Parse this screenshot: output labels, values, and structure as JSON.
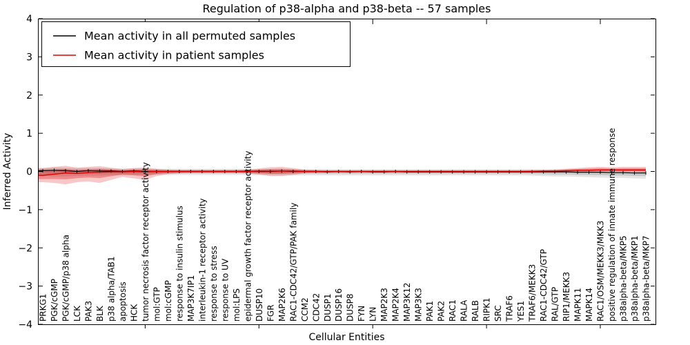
{
  "chart_data": {
    "type": "line",
    "title": "Regulation of p38-alpha and p38-beta -- 57 samples",
    "xlabel": "Cellular Entities",
    "ylabel": "Inferred Activity",
    "ylim": [
      -4,
      4
    ],
    "yticks": [
      4,
      3,
      2,
      1,
      0,
      -1,
      -2,
      -3,
      -4
    ],
    "xticks_major_positions": [
      10,
      20,
      30,
      40,
      50
    ],
    "grid": "off",
    "legend_position": "upper-left",
    "legend": {
      "entries": [
        {
          "label": "Mean activity in all permuted samples",
          "color": "#000000"
        },
        {
          "label": "Mean activity in patient samples",
          "color": "#dd0000"
        }
      ]
    },
    "colors": {
      "permuted_line": "#000000",
      "permuted_band": "rgba(0,0,0,0.10)",
      "permuted_band_inner": "rgba(0,0,0,0.13)",
      "patient_line": "#dd0000",
      "patient_band": "rgba(221,0,0,0.22)",
      "patient_band_inner": "rgba(221,0,0,0.30)"
    },
    "categories": [
      "PRKG1",
      "PGK/cGMP",
      "PGK/cGMP/p38 alpha",
      "LCK",
      "PAK3",
      "BLK",
      "p38 alpha/TAB1",
      "apoptosis",
      "HCK",
      "tumor necrosis factor receptor activity",
      "mol:GTP",
      "mol:cGMP",
      "response to insulin stimulus",
      "MAP3K7IP1",
      "interleukin-1 receptor activity",
      "response to stress",
      "response to UV",
      "mol:LPS",
      "epidermal growth factor receptor activity",
      "DUSP10",
      "FGR",
      "MAP2K6",
      "RAC1-CDC42/GTP/PAK family",
      "CCM2",
      "CDC42",
      "DUSP1",
      "DUSP16",
      "DUSP8",
      "FYN",
      "LYN",
      "MAP2K3",
      "MAP2K4",
      "MAP3K12",
      "MAP3K3",
      "PAK1",
      "PAK2",
      "RAC1",
      "RALA",
      "RALB",
      "RIPK1",
      "SRC",
      "TRAF6",
      "YES1",
      "TRAF6/MEKK3",
      "RAC1-CDC42/GTP",
      "RAL/GTP",
      "RIP1/MEKK3",
      "MAPK11",
      "MAPK14",
      "RAC1/OSM/MEKK3/MKK3",
      "positive regulation of innate immune response",
      "p38alpha-beta/MKP5",
      "p38alpha-beta/MKP1",
      "p38alpha-beta/MKP7"
    ],
    "series": [
      {
        "name": "Mean activity in all permuted samples",
        "mean": [
          0.02,
          0.03,
          0.02,
          0.0,
          0.02,
          0.01,
          0.01,
          0.0,
          0.01,
          0.0,
          0.0,
          0.0,
          0.0,
          0.0,
          0.0,
          0.0,
          0.0,
          0.0,
          0.0,
          0.0,
          0.0,
          0.01,
          0.0,
          0.0,
          0.0,
          -0.01,
          0.0,
          -0.01,
          0.0,
          -0.01,
          -0.01,
          0.0,
          -0.01,
          -0.01,
          -0.01,
          -0.01,
          -0.01,
          -0.01,
          -0.01,
          -0.01,
          -0.01,
          -0.01,
          -0.01,
          -0.01,
          -0.01,
          -0.01,
          -0.01,
          -0.02,
          -0.02,
          -0.02,
          -0.03,
          -0.03,
          -0.04,
          -0.04
        ],
        "band_hi": [
          0.1,
          0.11,
          0.1,
          0.09,
          0.09,
          0.09,
          0.08,
          0.08,
          0.08,
          0.07,
          0.07,
          0.07,
          0.07,
          0.07,
          0.07,
          0.07,
          0.07,
          0.07,
          0.07,
          0.06,
          0.06,
          0.06,
          0.06,
          0.06,
          0.06,
          0.06,
          0.06,
          0.06,
          0.06,
          0.06,
          0.06,
          0.06,
          0.06,
          0.06,
          0.06,
          0.06,
          0.06,
          0.06,
          0.06,
          0.06,
          0.06,
          0.06,
          0.06,
          0.06,
          0.06,
          0.06,
          0.06,
          0.06,
          0.06,
          0.06,
          0.06,
          0.06,
          0.06,
          0.06
        ],
        "band_lo": [
          -0.12,
          -0.13,
          -0.13,
          -0.12,
          -0.11,
          -0.11,
          -0.1,
          -0.1,
          -0.1,
          -0.09,
          -0.09,
          -0.09,
          -0.09,
          -0.09,
          -0.09,
          -0.09,
          -0.09,
          -0.09,
          -0.09,
          -0.1,
          -0.1,
          -0.1,
          -0.1,
          -0.1,
          -0.1,
          -0.1,
          -0.1,
          -0.1,
          -0.1,
          -0.1,
          -0.1,
          -0.1,
          -0.1,
          -0.1,
          -0.1,
          -0.1,
          -0.1,
          -0.1,
          -0.1,
          -0.1,
          -0.1,
          -0.1,
          -0.1,
          -0.11,
          -0.12,
          -0.13,
          -0.13,
          -0.14,
          -0.15,
          -0.16,
          -0.17,
          -0.17,
          -0.18,
          -0.19
        ]
      },
      {
        "name": "Mean activity in patient samples",
        "mean": [
          -0.1,
          -0.07,
          -0.04,
          -0.05,
          -0.03,
          -0.02,
          -0.01,
          -0.01,
          0.0,
          -0.01,
          0.0,
          0.0,
          0.0,
          0.0,
          0.0,
          0.0,
          0.0,
          0.0,
          0.0,
          0.01,
          0.01,
          0.01,
          0.01,
          0.0,
          0.0,
          0.0,
          0.0,
          0.0,
          0.0,
          0.0,
          0.0,
          0.0,
          0.0,
          0.0,
          0.0,
          0.0,
          0.0,
          0.0,
          0.0,
          0.0,
          0.0,
          0.0,
          0.0,
          0.0,
          0.01,
          0.01,
          0.02,
          0.03,
          0.03,
          0.04,
          0.04,
          0.04,
          0.04,
          0.04
        ],
        "band_hi": [
          0.08,
          0.12,
          0.15,
          0.1,
          0.12,
          0.14,
          0.1,
          0.06,
          0.09,
          0.11,
          0.07,
          0.05,
          0.04,
          0.04,
          0.04,
          0.04,
          0.04,
          0.04,
          0.05,
          0.08,
          0.11,
          0.12,
          0.09,
          0.05,
          0.04,
          0.03,
          0.03,
          0.03,
          0.03,
          0.03,
          0.03,
          0.03,
          0.03,
          0.03,
          0.03,
          0.03,
          0.03,
          0.03,
          0.03,
          0.03,
          0.03,
          0.03,
          0.03,
          0.04,
          0.04,
          0.05,
          0.07,
          0.09,
          0.11,
          0.12,
          0.11,
          0.12,
          0.12,
          0.12
        ],
        "band_lo": [
          -0.28,
          -0.3,
          -0.34,
          -0.28,
          -0.26,
          -0.3,
          -0.22,
          -0.14,
          -0.18,
          -0.22,
          -0.12,
          -0.07,
          -0.05,
          -0.04,
          -0.04,
          -0.04,
          -0.04,
          -0.04,
          -0.05,
          -0.08,
          -0.12,
          -0.12,
          -0.09,
          -0.05,
          -0.04,
          -0.03,
          -0.03,
          -0.03,
          -0.03,
          -0.03,
          -0.03,
          -0.03,
          -0.03,
          -0.03,
          -0.03,
          -0.03,
          -0.03,
          -0.03,
          -0.03,
          -0.03,
          -0.03,
          -0.03,
          -0.03,
          -0.03,
          -0.02,
          -0.02,
          -0.02,
          -0.01,
          -0.01,
          0.0,
          0.0,
          -0.01,
          -0.01,
          -0.02
        ]
      }
    ]
  }
}
